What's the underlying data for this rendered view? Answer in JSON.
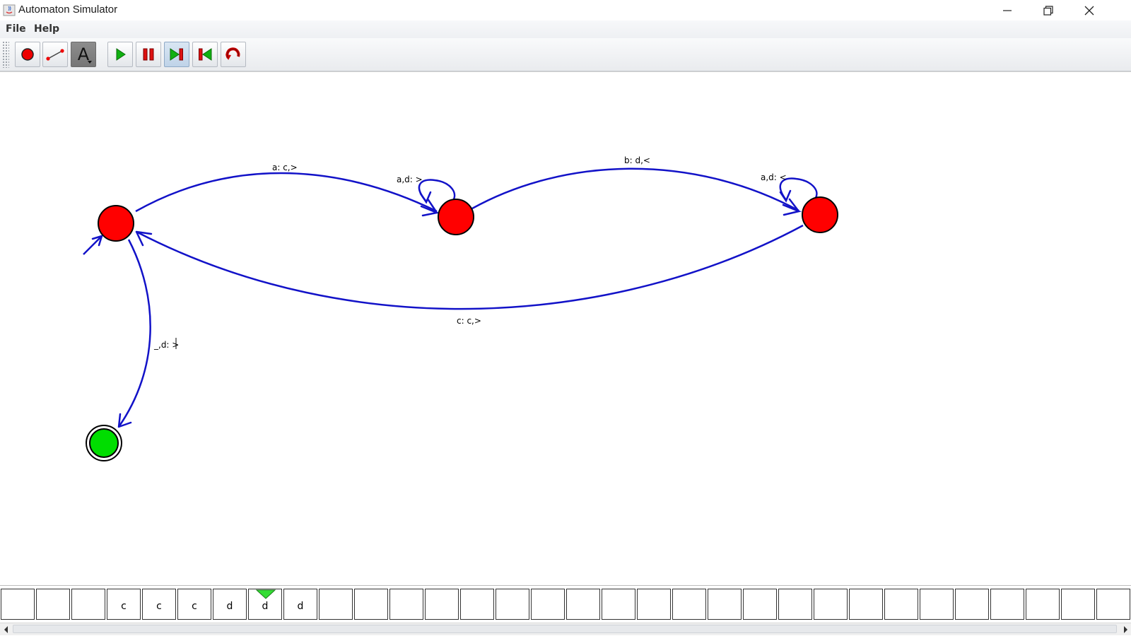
{
  "window": {
    "title": "Automaton Simulator",
    "minimize_icon": "minimize-icon",
    "restore_icon": "restore-icon",
    "close_icon": "close-icon"
  },
  "menu": {
    "items": [
      {
        "label": "File"
      },
      {
        "label": "Help"
      }
    ]
  },
  "toolbar": {
    "buttons": [
      {
        "name": "add-state-button",
        "icon": "record-icon",
        "state": "normal"
      },
      {
        "name": "add-transition-button",
        "icon": "transition-line-icon",
        "state": "normal"
      },
      {
        "name": "text-tool-button",
        "icon": "text-A-icon",
        "label": "A",
        "state": "pressed"
      },
      {
        "name": "play-button",
        "icon": "play-icon",
        "state": "normal"
      },
      {
        "name": "pause-button",
        "icon": "pause-icon",
        "state": "normal"
      },
      {
        "name": "step-forward-button",
        "icon": "step-forward-icon",
        "state": "selected"
      },
      {
        "name": "step-back-button",
        "icon": "step-back-icon",
        "state": "normal"
      },
      {
        "name": "reset-button",
        "icon": "reset-icon",
        "state": "normal"
      }
    ]
  },
  "automaton": {
    "colors": {
      "state": "#ff0000",
      "accept_state": "#00dd00",
      "edge": "#1212c8"
    },
    "states": [
      {
        "id": "q0",
        "initial": true,
        "accepting": false
      },
      {
        "id": "q1",
        "initial": false,
        "accepting": false
      },
      {
        "id": "q2",
        "initial": false,
        "accepting": false
      },
      {
        "id": "q3",
        "initial": false,
        "accepting": true
      }
    ],
    "transitions": [
      {
        "from": "q0",
        "to": "q1",
        "label": "a: c,>"
      },
      {
        "from": "q1",
        "to": "q1",
        "label": "a,d: >"
      },
      {
        "from": "q1",
        "to": "q2",
        "label": "b: d,<"
      },
      {
        "from": "q2",
        "to": "q2",
        "label": "a,d: <"
      },
      {
        "from": "q2",
        "to": "q0",
        "label": "c: c,>"
      },
      {
        "from": "q0",
        "to": "q3",
        "label": "_,d: >"
      }
    ]
  },
  "tape": {
    "cells": [
      "",
      "",
      "",
      "c",
      "c",
      "c",
      "d",
      "d",
      "d",
      "",
      "",
      "",
      "",
      "",
      "",
      "",
      "",
      "",
      "",
      "",
      "",
      "",
      "",
      "",
      "",
      "",
      "",
      "",
      "",
      "",
      "",
      "",
      ""
    ],
    "head_index": 7,
    "head_color": "#33dd33"
  }
}
